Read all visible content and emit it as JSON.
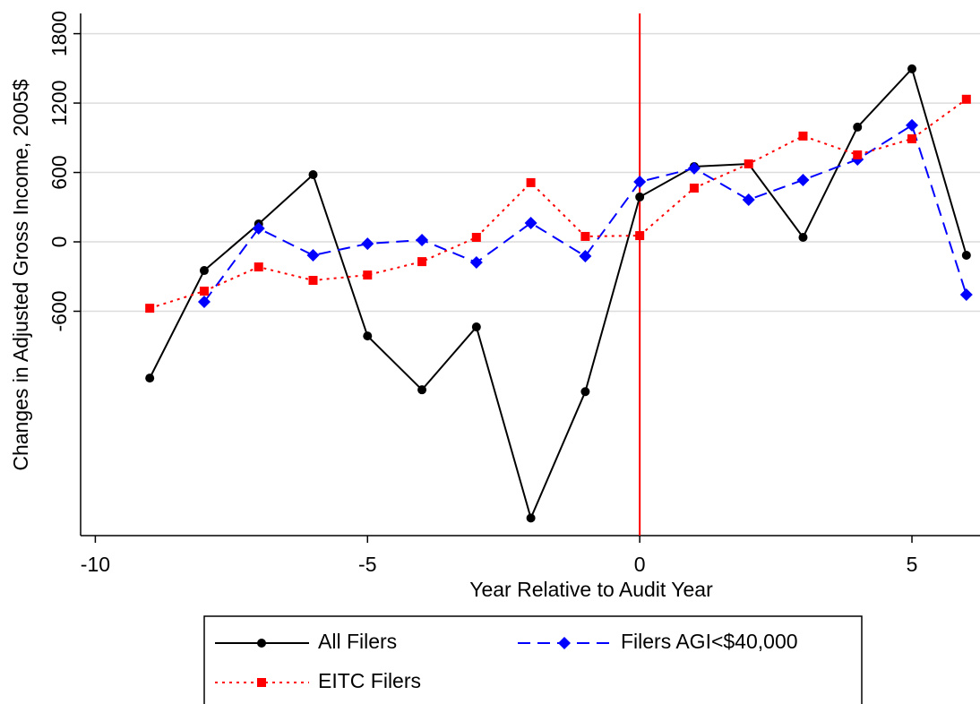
{
  "chart_data": {
    "type": "line",
    "xlabel": "Year Relative to Audit Year",
    "ylabel": "Changes in Adjusted Gross Income, 2005$",
    "xlim": [
      -10.27,
      6.25
    ],
    "xticks": [
      -10,
      -5,
      0,
      5
    ],
    "ylim": [
      -2540,
      1975
    ],
    "yticks": [
      -600,
      0,
      600,
      1200,
      1800
    ],
    "grid": true,
    "vline": 0,
    "vline_color": "#ff0000",
    "legend": "bottom",
    "x": [
      -9,
      -8,
      -7,
      -6,
      -5,
      -4,
      -3,
      -2,
      -1,
      0,
      1,
      2,
      3,
      4,
      5,
      6
    ],
    "series": [
      {
        "name": "All Filers",
        "color": "#000000",
        "dash": "solid",
        "marker": "circle",
        "values": [
          -1178,
          -248,
          155,
          581,
          -814,
          -1279,
          -736,
          -2388,
          -1295,
          388,
          651,
          674,
          39,
          992,
          1496,
          -116
        ]
      },
      {
        "name": "Filers AGI<$40,000",
        "color": "#0000ff",
        "dash": "dash",
        "marker": "diamond",
        "values": [
          null,
          -519,
          116,
          -116,
          -16,
          16,
          -178,
          163,
          -124,
          519,
          636,
          364,
          535,
          713,
          1008,
          -457
        ]
      },
      {
        "name": "EITC Filers",
        "color": "#ff0000",
        "dash": "dot",
        "marker": "square",
        "values": [
          -574,
          -426,
          -217,
          -333,
          -287,
          -171,
          39,
          512,
          47,
          54,
          465,
          674,
          915,
          752,
          891,
          1233
        ]
      }
    ]
  }
}
